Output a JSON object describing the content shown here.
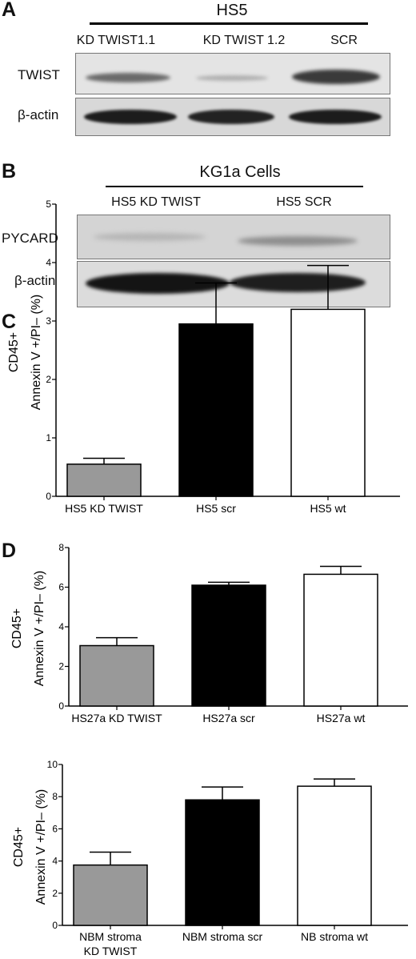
{
  "panel_a": {
    "letter": "A",
    "header": "HS5",
    "lanes": [
      "KD TWIST1.1",
      "KD TWIST 1.2",
      "SCR"
    ],
    "rows": [
      "TWIST",
      "β-actin"
    ]
  },
  "panel_b": {
    "letter": "B",
    "header": "KG1a Cells",
    "lanes": [
      "HS5 KD TWIST",
      "HS5 SCR"
    ],
    "rows": [
      "PYCARD",
      "β-actin"
    ]
  },
  "chart_data": [
    {
      "type": "bar",
      "panel": "C",
      "categories": [
        "HS5 KD TWIST",
        "HS5 scr",
        "HS5 wt"
      ],
      "values": [
        0.55,
        2.95,
        3.2
      ],
      "errors": [
        0.1,
        0.7,
        0.75
      ],
      "bar_colors": [
        "#999999",
        "#000000",
        "#ffffff"
      ],
      "ylabel": [
        "CD45+",
        "Annexin V +/PI– (%)"
      ],
      "ylim": [
        0,
        5
      ],
      "yticks": [
        0,
        1,
        2,
        3,
        4,
        5
      ],
      "grid": false
    },
    {
      "type": "bar",
      "panel": "D",
      "categories": [
        "HS27a KD TWIST",
        "HS27a scr",
        "HS27a wt"
      ],
      "values": [
        3.05,
        6.1,
        6.65
      ],
      "errors": [
        0.4,
        0.15,
        0.4
      ],
      "bar_colors": [
        "#999999",
        "#000000",
        "#ffffff"
      ],
      "ylabel": [
        "CD45+",
        "Annexin V +/PI– (%)"
      ],
      "ylim": [
        0,
        8
      ],
      "yticks": [
        0,
        2,
        4,
        6,
        8
      ],
      "grid": false
    },
    {
      "type": "bar",
      "panel": "",
      "categories": [
        [
          "NBM stroma",
          "KD TWIST"
        ],
        [
          "NBM stroma scr"
        ],
        [
          "NB stroma wt"
        ]
      ],
      "values": [
        3.75,
        7.8,
        8.65
      ],
      "errors": [
        0.8,
        0.8,
        0.45
      ],
      "bar_colors": [
        "#999999",
        "#000000",
        "#ffffff"
      ],
      "ylabel": [
        "CD45+",
        "Annexin V +/PI– (%)"
      ],
      "ylim": [
        0,
        10
      ],
      "yticks": [
        0,
        2,
        4,
        6,
        8,
        10
      ],
      "grid": false
    }
  ]
}
